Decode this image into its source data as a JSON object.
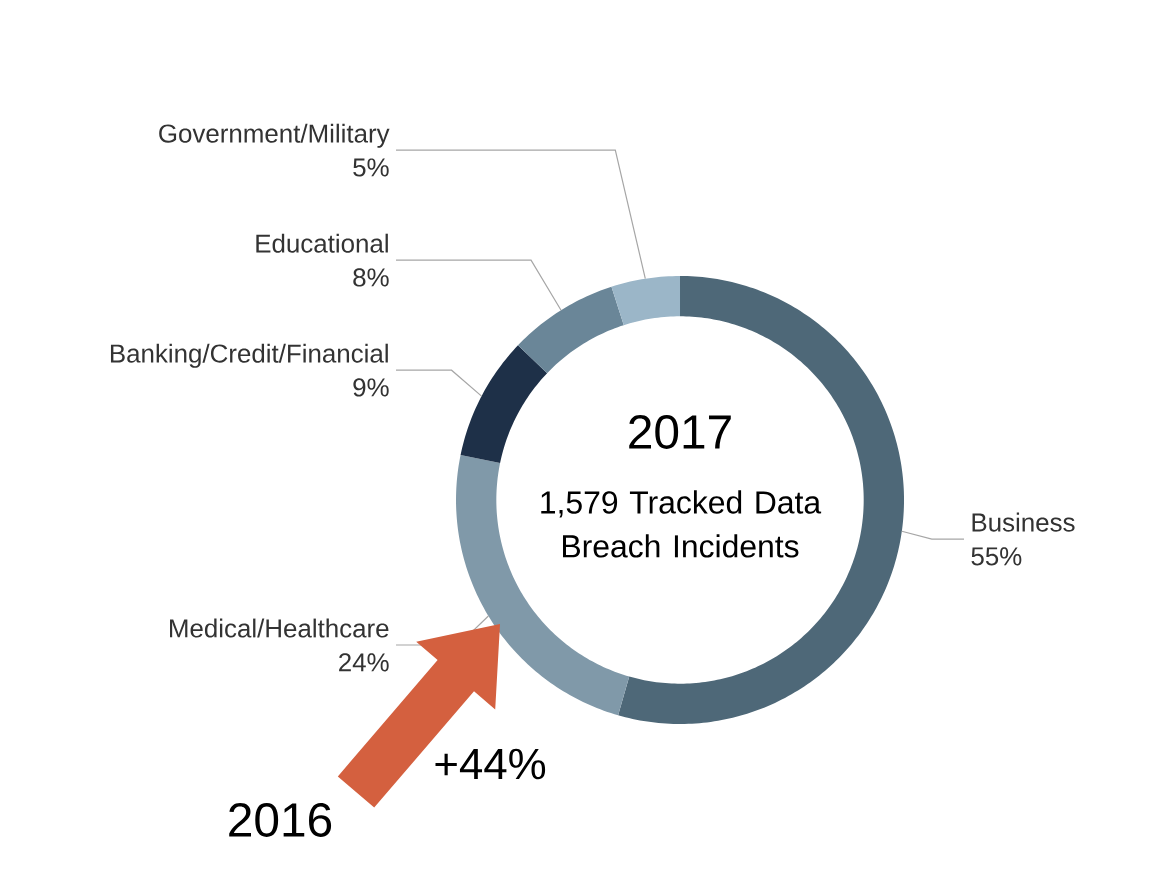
{
  "chart_data": {
    "type": "donut",
    "categories": [
      "Business",
      "Medical/Healthcare",
      "Banking/Credit/Financial",
      "Educational",
      "Government/Military"
    ],
    "values": [
      55,
      24,
      9,
      8,
      5
    ],
    "value_labels": [
      "55%",
      "24%",
      "9%",
      "8%",
      "5%"
    ],
    "colors": [
      "#4e6878",
      "#8099a9",
      "#1e3048",
      "#6a8698",
      "#9bb6c8"
    ],
    "annotations": [
      "2017",
      "1,579 Tracked Data Breach Incidents",
      "2016",
      "+44%"
    ]
  }
}
